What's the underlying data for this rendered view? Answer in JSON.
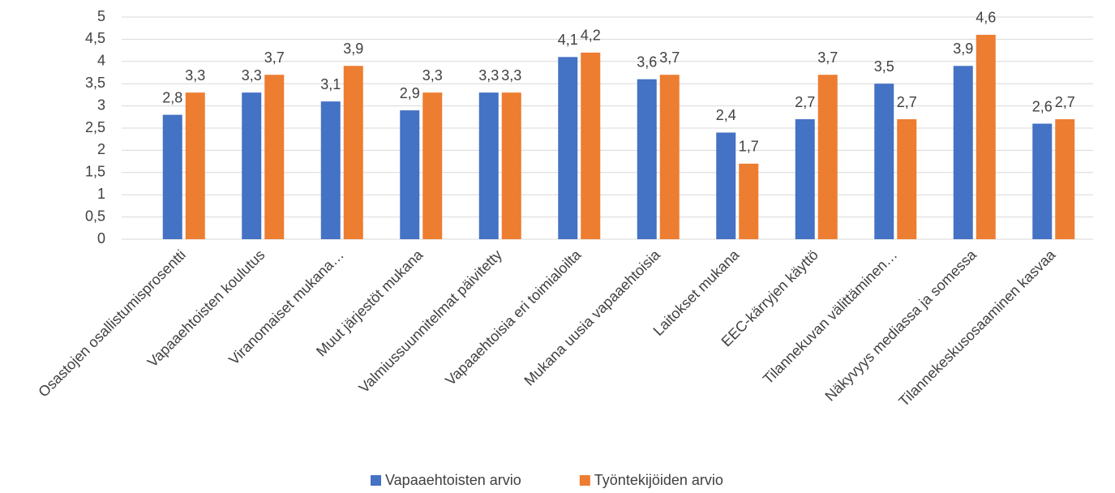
{
  "chart_data": {
    "type": "bar",
    "categories": [
      "Osastojen osallistumisprosentti",
      "Vapaaehtoisten koulutus",
      "Viranomaiset mukana…",
      "Muut järjestöt mukana",
      "Valmiussuunnitelmat päivitetty",
      "Vapaaehtoisia eri toimialoilta",
      "Mukana uusia vapaaehtoisia",
      "Laitokset mukana",
      "EEC-kärryjen käyttö",
      "Tilannekuvan välittäminen…",
      "Näkyvyys mediassa ja somessa",
      "Tilannekeskusosaaminen kasvaa"
    ],
    "series": [
      {
        "name": "Vapaaehtoisten arvio",
        "color": "#4472c4",
        "values": [
          2.8,
          3.3,
          3.1,
          2.9,
          3.3,
          4.1,
          3.6,
          2.4,
          2.7,
          3.5,
          3.9,
          2.6
        ],
        "value_labels": [
          "2,8",
          "3,3",
          "3,1",
          "2,9",
          "3,3",
          "4,1",
          "3,6",
          "2,4",
          "2,7",
          "3,5",
          "3,9",
          "2,6"
        ]
      },
      {
        "name": "Työntekijöiden arvio",
        "color": "#ed7d31",
        "values": [
          3.3,
          3.7,
          3.9,
          3.3,
          3.3,
          4.2,
          3.7,
          1.7,
          3.7,
          2.7,
          4.6,
          2.7
        ],
        "value_labels": [
          "3,3",
          "3,7",
          "3,9",
          "3,3",
          "3,3",
          "4,2",
          "3,7",
          "1,7",
          "3,7",
          "2,7",
          "4,6",
          "2,7"
        ]
      }
    ],
    "ylim": [
      0,
      5
    ],
    "yticks": [
      0,
      {
        "value": 0.5,
        "label": "0,5"
      },
      1,
      {
        "value": 1.5,
        "label": "1,5"
      },
      2,
      {
        "value": 2.5,
        "label": "2,5"
      },
      3,
      {
        "value": 3.5,
        "label": "3,5"
      },
      4,
      {
        "value": 4.5,
        "label": "4,5"
      },
      5
    ],
    "grid": true,
    "legend": "bottom"
  }
}
